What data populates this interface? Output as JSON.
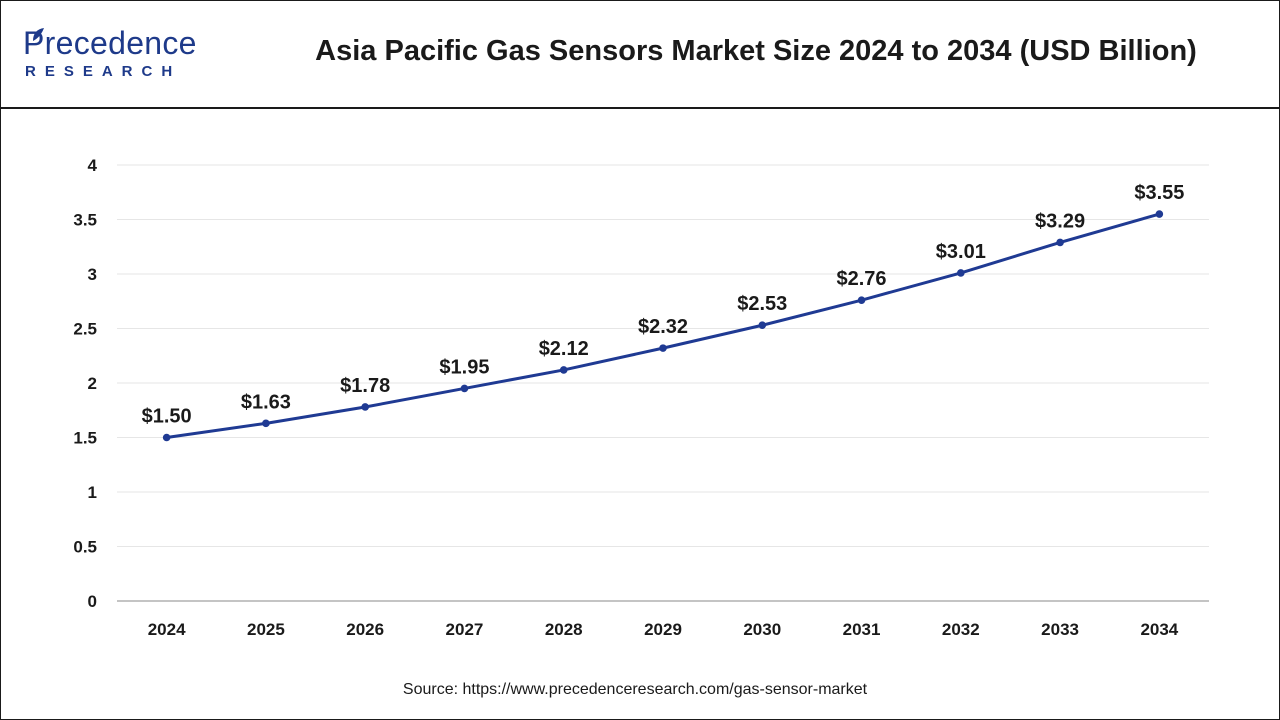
{
  "header": {
    "logo_word": "Precedence",
    "logo_sub": "RESEARCH",
    "title": "Asia Pacific Gas Sensors Market Size 2024 to 2034 (USD Billion)"
  },
  "colors": {
    "line": "#1f3a93",
    "grid": "#e6e6e6",
    "brand": "#1e3a8a"
  },
  "chart_data": {
    "type": "line",
    "title": "Asia Pacific Gas Sensors Market Size 2024 to 2034 (USD Billion)",
    "xlabel": "",
    "ylabel": "",
    "categories": [
      "2024",
      "2025",
      "2026",
      "2027",
      "2028",
      "2029",
      "2030",
      "2031",
      "2032",
      "2033",
      "2034"
    ],
    "series": [
      {
        "values": [
          1.5,
          1.63,
          1.78,
          1.95,
          2.12,
          2.32,
          2.53,
          2.76,
          3.01,
          3.29,
          3.55
        ],
        "labels": [
          "$1.50",
          "$1.63",
          "$1.78",
          "$1.95",
          "$2.12",
          "$2.32",
          "$2.53",
          "$2.76",
          "$3.01",
          "$3.29",
          "$3.55"
        ]
      }
    ],
    "ylim": [
      0,
      4
    ],
    "yticks": [
      "0",
      "0.5",
      "1",
      "1.5",
      "2",
      "2.5",
      "3",
      "3.5",
      "4"
    ],
    "grid": true,
    "legend": "none"
  },
  "source": "Source: https://www.precedenceresearch.com/gas-sensor-market"
}
